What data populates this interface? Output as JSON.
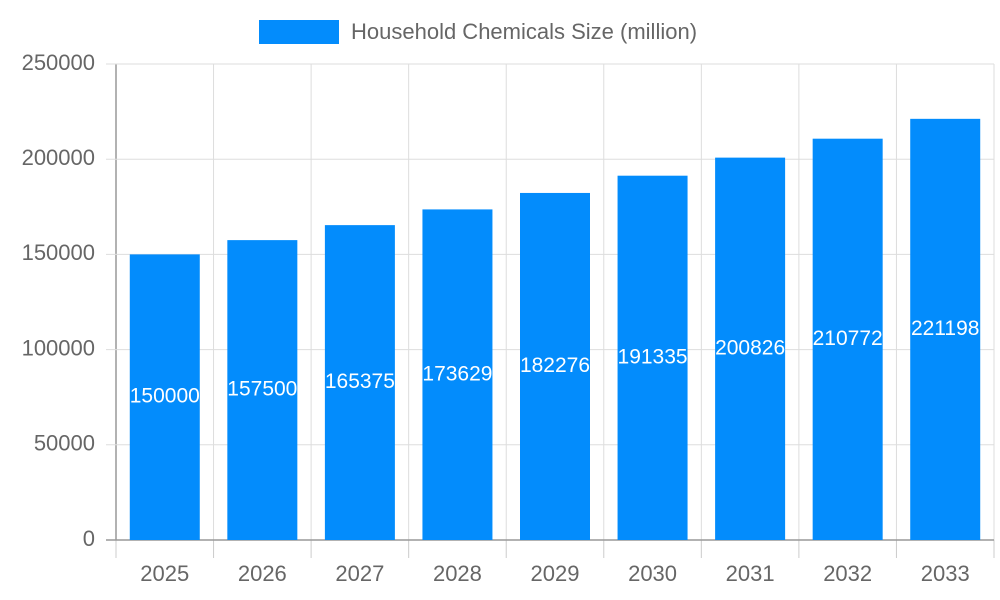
{
  "chart_data": {
    "type": "bar",
    "categories": [
      "2025",
      "2026",
      "2027",
      "2028",
      "2029",
      "2030",
      "2031",
      "2032",
      "2033"
    ],
    "series": [
      {
        "name": "Household Chemicals Size (million)",
        "color": "#038cfc",
        "values": [
          150000,
          157500,
          165375,
          173629,
          182276,
          191335,
          200826,
          210772,
          221198
        ]
      }
    ],
    "ylim": [
      0,
      250000
    ],
    "yticks": [
      0,
      50000,
      100000,
      150000,
      200000,
      250000
    ],
    "grid": true,
    "legend": "top",
    "data_labels": true
  }
}
